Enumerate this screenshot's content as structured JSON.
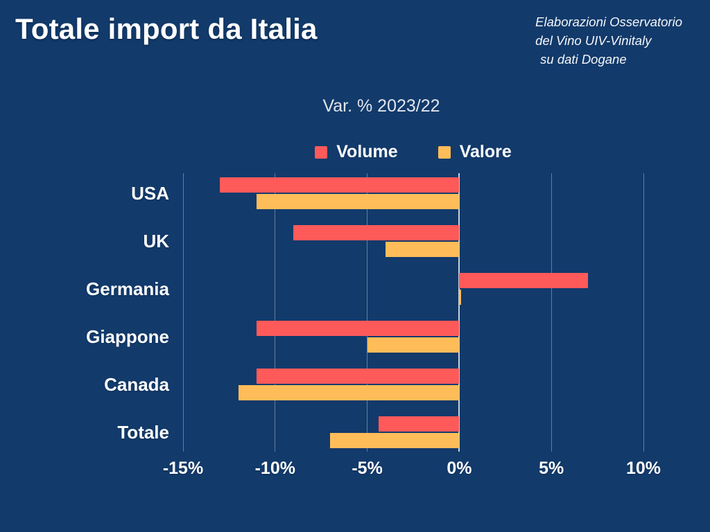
{
  "page": {
    "title": "Totale import da Italia",
    "source_note_lines": [
      "Elaborazioni Osservatorio",
      "del Vino UIV-Vinitaly",
      "su dati Dogane"
    ]
  },
  "chart_data": {
    "type": "bar",
    "orientation": "horizontal",
    "title": "Var. % 2023/22",
    "categories": [
      "USA",
      "UK",
      "Germania",
      "Giappone",
      "Canada",
      "Totale"
    ],
    "series": [
      {
        "name": "Volume",
        "color": "#FF5A5A",
        "values": [
          -13,
          -9,
          7,
          -11,
          -11,
          -4.4
        ]
      },
      {
        "name": "Valore",
        "color": "#FFBD59",
        "values": [
          -11,
          -4,
          0.1,
          -5,
          -12,
          -7
        ]
      }
    ],
    "xlim": [
      -15,
      10
    ],
    "x_ticks": [
      "-15%",
      "-10%",
      "-5%",
      "0%",
      "5%",
      "10%"
    ],
    "x_tick_values": [
      -15,
      -10,
      -5,
      0,
      5,
      10
    ],
    "grid": true,
    "legend_position": "top",
    "unit": "percent"
  },
  "colors": {
    "background": "#123A6B",
    "text": "#FFFFFF",
    "subtitle_text": "#E2E6ED",
    "gridline": "rgba(255,255,255,0.35)",
    "zero_line": "rgba(230,235,242,0.85)",
    "volume_bar": "#FF5A5A",
    "valore_bar": "#FFBD59"
  }
}
